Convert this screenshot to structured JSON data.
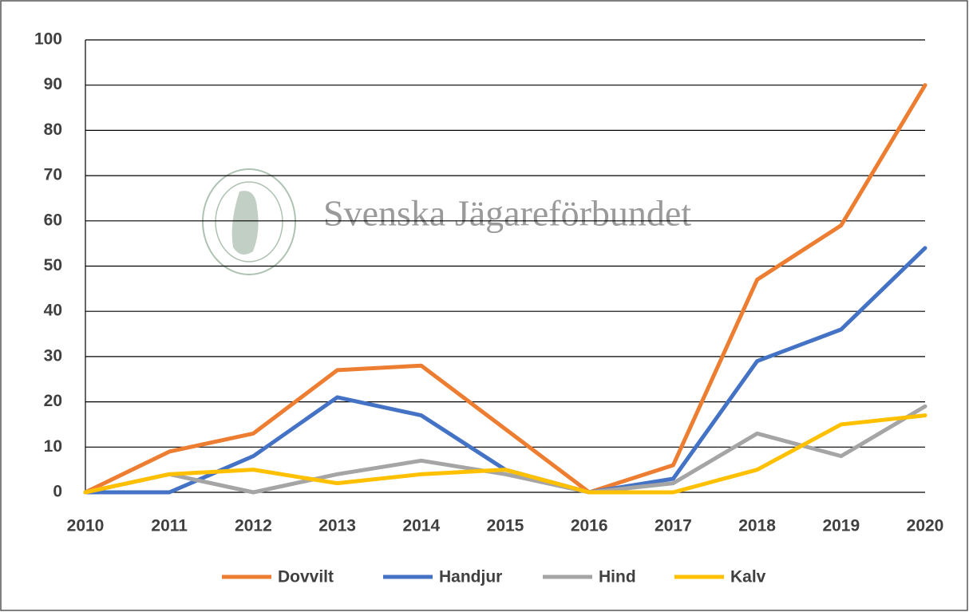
{
  "chart_data": {
    "type": "line",
    "watermark": "Svenska Jägareförbundet",
    "categories": [
      "2010",
      "2011",
      "2012",
      "2013",
      "2014",
      "2015",
      "2016",
      "2017",
      "2018",
      "2019",
      "2020"
    ],
    "series": [
      {
        "name": "Dovvilt",
        "color": "#ed7d31",
        "values": [
          0,
          9,
          13,
          27,
          28,
          14,
          0,
          6,
          47,
          59,
          90
        ]
      },
      {
        "name": "Handjur",
        "color": "#4472c4",
        "values": [
          0,
          0,
          8,
          21,
          17,
          5,
          0,
          3,
          29,
          36,
          54
        ]
      },
      {
        "name": "Hind",
        "color": "#a5a5a5",
        "values": [
          0,
          4,
          0,
          4,
          7,
          4,
          0,
          2,
          13,
          8,
          19
        ]
      },
      {
        "name": "Kalv",
        "color": "#ffc000",
        "values": [
          0,
          4,
          5,
          2,
          4,
          5,
          0,
          0,
          5,
          15,
          17
        ]
      }
    ],
    "ylim": [
      0,
      100
    ],
    "yticks": [
      0,
      10,
      20,
      30,
      40,
      50,
      60,
      70,
      80,
      90,
      100
    ],
    "grid": true,
    "legend": "bottom"
  }
}
